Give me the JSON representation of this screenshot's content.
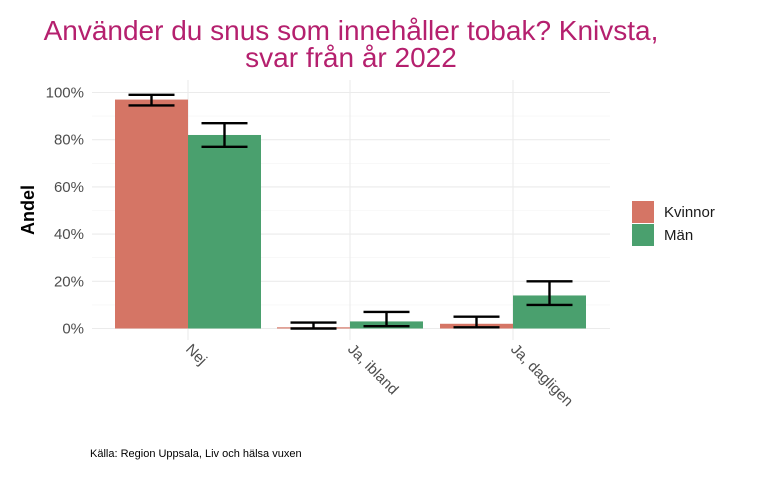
{
  "chart_data": {
    "type": "bar",
    "title_lines": [
      "Använder du snus som innehåller tobak? Knivsta,",
      "svar från år 2022"
    ],
    "xlabel": "",
    "ylabel": "Andel",
    "categories": [
      "Nej",
      "Ja, ibland",
      "Ja, dagligen"
    ],
    "series": [
      {
        "name": "Kvinnor",
        "color": "#d57565",
        "values": [
          0.97,
          0.005,
          0.02
        ],
        "err_low": [
          0.945,
          0.0,
          0.005
        ],
        "err_high": [
          0.99,
          0.025,
          0.05
        ]
      },
      {
        "name": "Män",
        "color": "#4aa06e",
        "values": [
          0.82,
          0.03,
          0.14
        ],
        "err_low": [
          0.77,
          0.01,
          0.1
        ],
        "err_high": [
          0.87,
          0.07,
          0.2
        ]
      }
    ],
    "ylim": [
      0,
      1.0
    ],
    "yticks": [
      0,
      0.2,
      0.4,
      0.6,
      0.8,
      1.0
    ],
    "ytick_labels": [
      "0%",
      "20%",
      "40%",
      "60%",
      "80%",
      "100%"
    ],
    "grid": true,
    "legend_position": "right",
    "caption": "Källa: Region Uppsala, Liv och hälsa vuxen"
  }
}
